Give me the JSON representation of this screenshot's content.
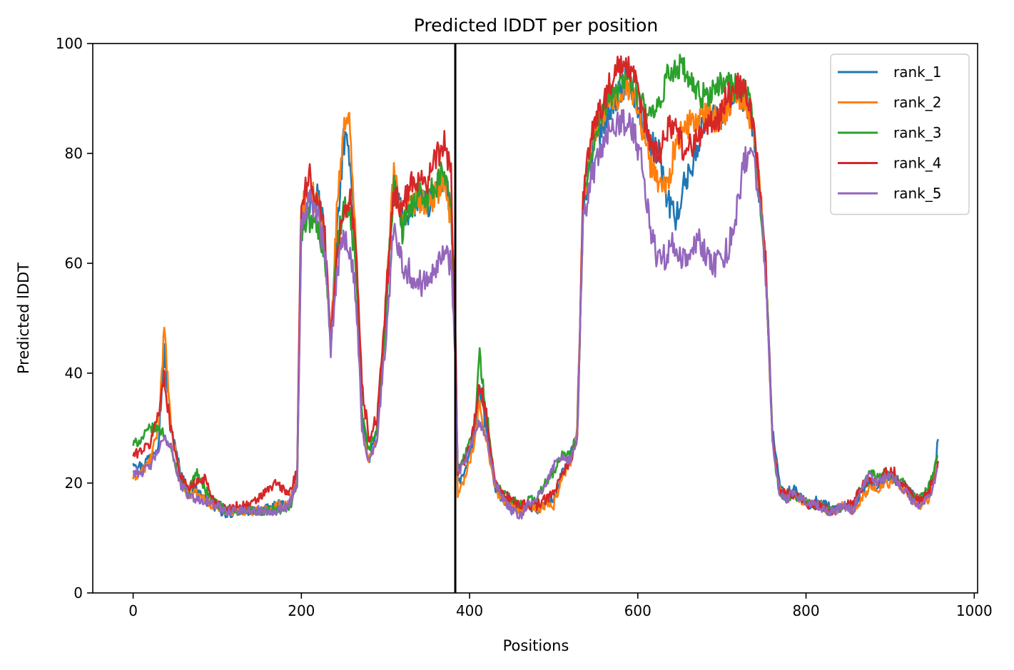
{
  "chart_data": {
    "type": "line",
    "title": "Predicted lDDT per position",
    "xlabel": "Positions",
    "ylabel": "Predicted lDDT",
    "xlim": [
      -48,
      1004
    ],
    "ylim": [
      0,
      100
    ],
    "xticks": [
      0,
      200,
      400,
      600,
      800,
      1000
    ],
    "yticks": [
      0,
      20,
      40,
      60,
      80,
      100
    ],
    "grid": false,
    "legend_position": "top-right",
    "chain_break_x": 383,
    "x_max_position": 957,
    "series": [
      {
        "name": "rank_1",
        "color": "#1f77b4",
        "x": [
          0,
          10,
          20,
          30,
          37,
          45,
          55,
          65,
          75,
          85,
          95,
          110,
          125,
          140,
          155,
          170,
          185,
          195,
          200,
          210,
          220,
          228,
          235,
          242,
          250,
          258,
          265,
          272,
          280,
          290,
          300,
          310,
          320,
          330,
          340,
          350,
          360,
          370,
          378,
          383,
          386,
          395,
          405,
          412,
          420,
          430,
          440,
          450,
          460,
          470,
          480,
          490,
          500,
          510,
          520,
          528,
          535,
          545,
          555,
          565,
          575,
          585,
          595,
          605,
          615,
          625,
          635,
          645,
          655,
          665,
          675,
          685,
          695,
          705,
          715,
          725,
          735,
          745,
          752,
          760,
          768,
          775,
          785,
          795,
          805,
          815,
          825,
          835,
          845,
          855,
          865,
          875,
          885,
          895,
          905,
          915,
          925,
          935,
          945,
          952,
          957
        ],
        "values": [
          24,
          23,
          25,
          27,
          44,
          30,
          23,
          18,
          19,
          17,
          16,
          14,
          15,
          15,
          15,
          16,
          16,
          22,
          66,
          70,
          72,
          65,
          45,
          65,
          82,
          80,
          60,
          32,
          24,
          30,
          50,
          75,
          68,
          70,
          72,
          70,
          74,
          75,
          70,
          45,
          20,
          22,
          28,
          37,
          30,
          19,
          17,
          16,
          15,
          16,
          15,
          16,
          17,
          22,
          25,
          30,
          70,
          80,
          84,
          88,
          90,
          93,
          91,
          86,
          82,
          80,
          72,
          68,
          74,
          78,
          84,
          88,
          86,
          88,
          91,
          90,
          86,
          72,
          60,
          30,
          20,
          18,
          19,
          17,
          16,
          17,
          16,
          15,
          16,
          15,
          18,
          20,
          19,
          21,
          20,
          20,
          18,
          17,
          18,
          21,
          28
        ]
      },
      {
        "name": "rank_2",
        "color": "#ff7f0e",
        "x": [
          0,
          10,
          20,
          30,
          37,
          45,
          55,
          65,
          75,
          85,
          95,
          110,
          125,
          140,
          155,
          170,
          185,
          195,
          200,
          210,
          220,
          228,
          235,
          242,
          250,
          258,
          265,
          272,
          280,
          290,
          300,
          310,
          320,
          330,
          340,
          350,
          360,
          370,
          378,
          383,
          386,
          395,
          405,
          412,
          420,
          430,
          440,
          450,
          460,
          470,
          480,
          490,
          500,
          510,
          520,
          528,
          535,
          545,
          555,
          565,
          575,
          585,
          595,
          605,
          615,
          625,
          635,
          645,
          655,
          665,
          675,
          685,
          695,
          705,
          715,
          725,
          735,
          745,
          752,
          760,
          768,
          775,
          785,
          795,
          805,
          815,
          825,
          835,
          845,
          855,
          865,
          875,
          885,
          895,
          905,
          915,
          925,
          935,
          945,
          952,
          957
        ],
        "values": [
          21,
          22,
          24,
          30,
          48,
          30,
          22,
          18,
          18,
          17,
          16,
          15,
          15,
          15,
          15,
          16,
          16,
          21,
          70,
          74,
          70,
          64,
          45,
          70,
          84,
          86,
          62,
          30,
          24,
          28,
          52,
          77,
          68,
          70,
          72,
          70,
          73,
          74,
          68,
          45,
          18,
          21,
          27,
          34,
          28,
          19,
          17,
          16,
          15,
          16,
          15,
          16,
          16,
          21,
          24,
          30,
          72,
          82,
          86,
          89,
          90,
          93,
          91,
          85,
          78,
          75,
          74,
          82,
          84,
          86,
          86,
          87,
          86,
          88,
          91,
          90,
          86,
          74,
          60,
          28,
          19,
          18,
          18,
          17,
          16,
          16,
          15,
          15,
          16,
          15,
          17,
          19,
          19,
          20,
          20,
          19,
          17,
          16,
          17,
          20,
          24
        ]
      },
      {
        "name": "rank_3",
        "color": "#2ca02c",
        "x": [
          0,
          10,
          20,
          30,
          37,
          45,
          55,
          65,
          75,
          85,
          95,
          110,
          125,
          140,
          155,
          170,
          185,
          195,
          200,
          210,
          220,
          228,
          235,
          242,
          250,
          258,
          265,
          272,
          280,
          290,
          300,
          310,
          320,
          330,
          340,
          350,
          360,
          370,
          378,
          383,
          386,
          395,
          405,
          412,
          420,
          430,
          440,
          450,
          460,
          470,
          480,
          490,
          500,
          510,
          520,
          528,
          535,
          545,
          555,
          565,
          575,
          585,
          595,
          605,
          615,
          625,
          635,
          645,
          655,
          665,
          675,
          685,
          695,
          705,
          715,
          725,
          735,
          745,
          752,
          760,
          768,
          775,
          785,
          795,
          805,
          815,
          825,
          835,
          845,
          855,
          865,
          875,
          885,
          895,
          905,
          915,
          925,
          935,
          945,
          952,
          957
        ],
        "values": [
          27,
          28,
          30,
          30,
          29,
          26,
          21,
          18,
          22,
          19,
          17,
          15,
          15,
          15,
          15,
          15,
          15,
          20,
          66,
          68,
          66,
          62,
          45,
          62,
          70,
          68,
          58,
          32,
          26,
          30,
          50,
          74,
          66,
          70,
          74,
          72,
          74,
          77,
          72,
          46,
          22,
          25,
          30,
          43,
          33,
          20,
          18,
          17,
          16,
          17,
          17,
          20,
          22,
          25,
          25,
          28,
          70,
          80,
          85,
          90,
          92,
          94,
          93,
          89,
          86,
          88,
          94,
          96,
          95,
          92,
          90,
          91,
          92,
          93,
          92,
          92,
          88,
          73,
          60,
          28,
          18,
          17,
          18,
          17,
          16,
          16,
          15,
          15,
          16,
          16,
          19,
          22,
          21,
          22,
          21,
          20,
          18,
          17,
          19,
          22,
          25
        ]
      },
      {
        "name": "rank_4",
        "color": "#d62728",
        "x": [
          0,
          10,
          20,
          30,
          37,
          45,
          55,
          65,
          75,
          85,
          95,
          110,
          125,
          140,
          155,
          170,
          185,
          195,
          200,
          210,
          220,
          228,
          235,
          242,
          250,
          258,
          265,
          272,
          280,
          290,
          300,
          310,
          320,
          330,
          340,
          350,
          360,
          370,
          378,
          383,
          386,
          395,
          405,
          412,
          420,
          430,
          440,
          450,
          460,
          470,
          480,
          490,
          500,
          510,
          520,
          528,
          535,
          545,
          555,
          565,
          575,
          585,
          595,
          605,
          615,
          625,
          635,
          645,
          655,
          665,
          675,
          685,
          695,
          705,
          715,
          725,
          735,
          745,
          752,
          760,
          768,
          775,
          785,
          795,
          805,
          815,
          825,
          835,
          845,
          855,
          865,
          875,
          885,
          895,
          905,
          915,
          925,
          935,
          945,
          952,
          957
        ],
        "values": [
          25,
          26,
          27,
          33,
          39,
          30,
          22,
          19,
          20,
          21,
          17,
          15,
          16,
          16,
          18,
          20,
          18,
          22,
          72,
          76,
          70,
          66,
          46,
          60,
          70,
          72,
          64,
          38,
          28,
          32,
          52,
          73,
          70,
          74,
          76,
          75,
          79,
          82,
          76,
          48,
          22,
          24,
          30,
          38,
          32,
          20,
          18,
          17,
          16,
          16,
          16,
          17,
          18,
          22,
          24,
          28,
          72,
          84,
          88,
          92,
          95,
          96,
          94,
          88,
          82,
          80,
          84,
          86,
          80,
          82,
          84,
          85,
          86,
          90,
          92,
          92,
          88,
          74,
          60,
          29,
          19,
          18,
          18,
          17,
          16,
          16,
          15,
          15,
          16,
          16,
          19,
          21,
          20,
          22,
          22,
          20,
          18,
          17,
          18,
          21,
          24
        ]
      },
      {
        "name": "rank_5",
        "color": "#9467bd",
        "x": [
          0,
          10,
          20,
          30,
          37,
          45,
          55,
          65,
          75,
          85,
          95,
          110,
          125,
          140,
          155,
          170,
          185,
          195,
          200,
          210,
          220,
          228,
          235,
          242,
          250,
          258,
          265,
          272,
          280,
          290,
          300,
          310,
          320,
          330,
          340,
          350,
          360,
          370,
          378,
          383,
          386,
          395,
          405,
          412,
          420,
          430,
          440,
          450,
          460,
          470,
          480,
          490,
          500,
          510,
          520,
          528,
          535,
          545,
          555,
          565,
          575,
          585,
          595,
          605,
          615,
          625,
          635,
          645,
          655,
          665,
          675,
          685,
          695,
          705,
          715,
          725,
          735,
          745,
          752,
          760,
          768,
          775,
          785,
          795,
          805,
          815,
          825,
          835,
          845,
          855,
          865,
          875,
          885,
          895,
          905,
          915,
          925,
          935,
          945,
          952,
          957
        ],
        "values": [
          22,
          22,
          23,
          26,
          28,
          27,
          20,
          18,
          17,
          17,
          16,
          15,
          15,
          15,
          15,
          15,
          16,
          20,
          67,
          72,
          68,
          62,
          44,
          58,
          66,
          62,
          54,
          30,
          24,
          28,
          45,
          68,
          60,
          58,
          56,
          58,
          60,
          62,
          60,
          44,
          22,
          24,
          28,
          31,
          28,
          20,
          17,
          15,
          14,
          16,
          17,
          20,
          23,
          25,
          24,
          28,
          68,
          76,
          80,
          84,
          85,
          86,
          84,
          78,
          66,
          60,
          62,
          64,
          60,
          62,
          64,
          60,
          60,
          62,
          66,
          78,
          80,
          73,
          58,
          28,
          18,
          17,
          18,
          17,
          16,
          16,
          15,
          15,
          16,
          15,
          18,
          22,
          20,
          21,
          21,
          19,
          17,
          16,
          17,
          20,
          23
        ]
      }
    ]
  }
}
